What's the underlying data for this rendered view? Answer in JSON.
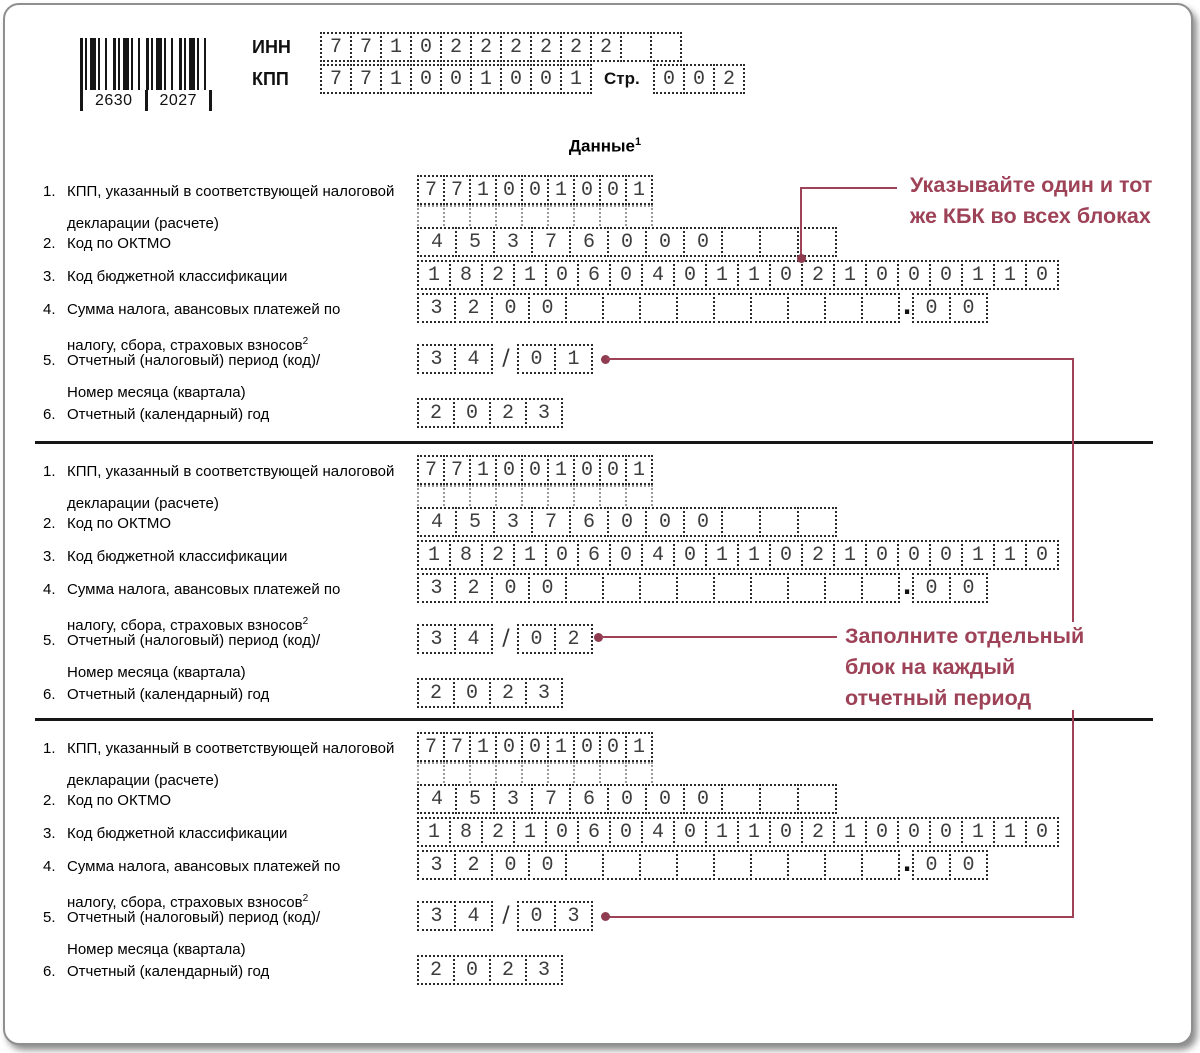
{
  "form": {
    "barcode": {
      "digits_left": "2630",
      "digits_right": "2027"
    },
    "inn": {
      "label": "ИНН",
      "cells": [
        "7",
        "7",
        "1",
        "0",
        "2",
        "2",
        "2",
        "2",
        "2",
        "2",
        "",
        ""
      ]
    },
    "kpp": {
      "label": "КПП",
      "cells": [
        "7",
        "7",
        "1",
        "0",
        "0",
        "1",
        "0",
        "0",
        "1"
      ]
    },
    "page": {
      "label": "Стр.",
      "cells": [
        "0",
        "0",
        "2"
      ]
    },
    "title": "Данные",
    "title_sup": "1",
    "field_labels": [
      {
        "num": "1.",
        "lines": [
          "КПП, указанный в соответствующей налоговой",
          "декларации (расчете)"
        ]
      },
      {
        "num": "2.",
        "lines": [
          "Код по ОКТМО"
        ]
      },
      {
        "num": "3.",
        "lines": [
          "Код бюджетной классификации"
        ]
      },
      {
        "num": "4.",
        "lines": [
          "Сумма налога, авансовых платежей по",
          "налогу, сбора, страховых взносов"
        ],
        "sup": "2"
      },
      {
        "num": "5.",
        "lines": [
          "Отчетный (налоговый) период (код)/",
          "Номер месяца (квартала)"
        ]
      },
      {
        "num": "6.",
        "lines": [
          "Отчетный (календарный) год"
        ]
      }
    ],
    "blocks": [
      {
        "kpp": [
          "7",
          "7",
          "1",
          "0",
          "0",
          "1",
          "0",
          "0",
          "1"
        ],
        "oktmo": [
          "4",
          "5",
          "3",
          "7",
          "6",
          "0",
          "0",
          "0",
          "",
          "",
          ""
        ],
        "kbk": [
          "1",
          "8",
          "2",
          "1",
          "0",
          "6",
          "0",
          "4",
          "0",
          "1",
          "1",
          "0",
          "2",
          "1",
          "0",
          "0",
          "0",
          "1",
          "1",
          "0"
        ],
        "sum_int": [
          "3",
          "2",
          "0",
          "0",
          "",
          "",
          "",
          "",
          "",
          "",
          "",
          "",
          ""
        ],
        "sum_dec": [
          "0",
          "0"
        ],
        "period": [
          "3",
          "4"
        ],
        "month": [
          "0",
          "1"
        ],
        "year": [
          "2",
          "0",
          "2",
          "3"
        ]
      },
      {
        "kpp": [
          "7",
          "7",
          "1",
          "0",
          "0",
          "1",
          "0",
          "0",
          "1"
        ],
        "oktmo": [
          "4",
          "5",
          "3",
          "7",
          "6",
          "0",
          "0",
          "0",
          "",
          "",
          ""
        ],
        "kbk": [
          "1",
          "8",
          "2",
          "1",
          "0",
          "6",
          "0",
          "4",
          "0",
          "1",
          "1",
          "0",
          "2",
          "1",
          "0",
          "0",
          "0",
          "1",
          "1",
          "0"
        ],
        "sum_int": [
          "3",
          "2",
          "0",
          "0",
          "",
          "",
          "",
          "",
          "",
          "",
          "",
          "",
          ""
        ],
        "sum_dec": [
          "0",
          "0"
        ],
        "period": [
          "3",
          "4"
        ],
        "month": [
          "0",
          "2"
        ],
        "year": [
          "2",
          "0",
          "2",
          "3"
        ]
      },
      {
        "kpp": [
          "7",
          "7",
          "1",
          "0",
          "0",
          "1",
          "0",
          "0",
          "1"
        ],
        "oktmo": [
          "4",
          "5",
          "3",
          "7",
          "6",
          "0",
          "0",
          "0",
          "",
          "",
          ""
        ],
        "kbk": [
          "1",
          "8",
          "2",
          "1",
          "0",
          "6",
          "0",
          "4",
          "0",
          "1",
          "1",
          "0",
          "2",
          "1",
          "0",
          "0",
          "0",
          "1",
          "1",
          "0"
        ],
        "sum_int": [
          "3",
          "2",
          "0",
          "0",
          "",
          "",
          "",
          "",
          "",
          "",
          "",
          "",
          ""
        ],
        "sum_dec": [
          "0",
          "0"
        ],
        "period": [
          "3",
          "4"
        ],
        "month": [
          "0",
          "3"
        ],
        "year": [
          "2",
          "0",
          "2",
          "3"
        ]
      }
    ],
    "annotations": [
      {
        "lines": [
          "Указывайте один и тот",
          "же КБК во всех блоках"
        ]
      },
      {
        "lines": [
          "Заполните отдельный",
          "блок на каждый",
          "отчетный период"
        ]
      }
    ],
    "colors": {
      "accent": "#9e4257",
      "accent_dark": "#8f3c50",
      "form_ink": "#161616"
    }
  }
}
